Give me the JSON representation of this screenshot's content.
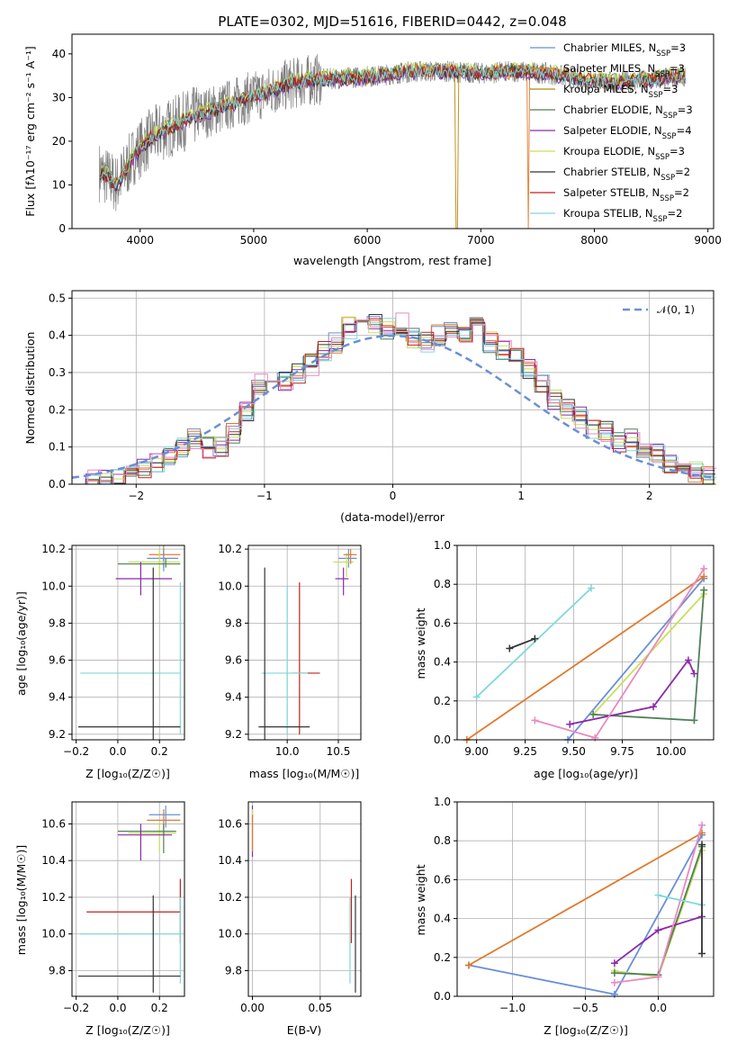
{
  "title": "PLATE=0302, MJD=51616, FIBERID=0442, z=0.048",
  "colors": {
    "c0": "#6a8fd8",
    "c1": "#e07a2c",
    "c2": "#b8860b",
    "c3": "#4f7f5a",
    "c4": "#8a2aa8",
    "c5": "#c8e05a",
    "c6": "#333333",
    "c7": "#c0201c",
    "c8": "#7fd8d8",
    "pink": "#e88ac0",
    "data": "#808080",
    "normal": "#6a8fd8"
  },
  "spectrum": {
    "xlabel": "wavelength [Angstrom, rest frame]",
    "ylabel": "Flux [fλ10⁻¹⁷ erg cm⁻² s⁻¹ A⁻¹]",
    "xticks": [
      "4000",
      "5000",
      "6000",
      "7000",
      "8000",
      "9000"
    ],
    "yticks": [
      "0",
      "10",
      "20",
      "30",
      "40"
    ],
    "xlim": [
      3400,
      9050
    ],
    "ylim": [
      0,
      44.5
    ],
    "legend": [
      {
        "name": "Chabrier MILES",
        "nssp": "3"
      },
      {
        "name": "Salpeter MILES",
        "nssp": "3"
      },
      {
        "name": "Kroupa MILES",
        "nssp": "3"
      },
      {
        "name": "Chabrier ELODIE",
        "nssp": "3"
      },
      {
        "name": "Salpeter ELODIE",
        "nssp": "4"
      },
      {
        "name": "Kroupa ELODIE",
        "nssp": "3"
      },
      {
        "name": "Chabrier STELIB",
        "nssp": "2"
      },
      {
        "name": "Salpeter STELIB",
        "nssp": "2"
      },
      {
        "name": "Kroupa STELIB",
        "nssp": "2"
      }
    ],
    "nssp_label": "N",
    "nssp_sub": "SSP"
  },
  "hist": {
    "xlabel": "(data-model)/error",
    "ylabel": "Normed distribution",
    "xticks": [
      "−2",
      "−1",
      "0",
      "1",
      "2"
    ],
    "yticks": [
      "0.0",
      "0.1",
      "0.2",
      "0.3",
      "0.4",
      "0.5"
    ],
    "xlim": [
      -2.5,
      2.5
    ],
    "ylim": [
      0,
      0.52
    ],
    "legend": "𝒩(0, 1)"
  },
  "panels": {
    "age_z": {
      "xlabel": "Z [log₁₀(Z/Z☉)]",
      "ylabel": "age  [log₁₀(age/yr)]",
      "xticks": [
        "−0.2",
        "0.0",
        "0.2"
      ],
      "yticks": [
        "9.2",
        "9.4",
        "9.6",
        "9.8",
        "10.0",
        "10.2"
      ]
    },
    "age_mass": {
      "xlabel": "mass [log₁₀(M/M☉)]",
      "xticks": [
        "10.0",
        "10.5"
      ],
      "yticks": [
        "9.2",
        "9.4",
        "9.6",
        "9.8",
        "10.0",
        "10.2"
      ]
    },
    "mw_age": {
      "xlabel": "age  [log₁₀(age/yr)]",
      "ylabel": "mass weight",
      "xticks": [
        "9.00",
        "9.25",
        "9.50",
        "9.75",
        "10.00"
      ],
      "yticks": [
        "0.0",
        "0.2",
        "0.4",
        "0.6",
        "0.8",
        "1.0"
      ]
    },
    "mass_z": {
      "xlabel": "Z [log₁₀(Z/Z☉)]",
      "ylabel": "mass [log₁₀(M/M☉)]",
      "xticks": [
        "−0.2",
        "0.0",
        "0.2"
      ],
      "yticks": [
        "9.8",
        "10.0",
        "10.2",
        "10.4",
        "10.6"
      ]
    },
    "mass_ebv": {
      "xlabel": "E(B-V)",
      "xticks": [
        "0.00",
        "0.05"
      ],
      "yticks": [
        "9.8",
        "10.0",
        "10.2",
        "10.4",
        "10.6"
      ]
    },
    "mw_z": {
      "xlabel": "Z [log₁₀(Z/Z☉)]",
      "ylabel": "mass weight",
      "xticks": [
        "−1.0",
        "−0.5",
        "0.0"
      ],
      "yticks": [
        "0.0",
        "0.2",
        "0.4",
        "0.6",
        "0.8",
        "1.0"
      ]
    }
  },
  "chart_data": [
    {
      "type": "line",
      "title": "PLATE=0302, MJD=51616, FIBERID=0442, z=0.048",
      "xlabel": "wavelength [Angstrom, rest frame]",
      "ylabel": "Flux [fλ10⁻¹⁷ erg cm⁻² s⁻¹ A⁻¹]",
      "xlim": [
        3400,
        9050
      ],
      "ylim": [
        0,
        44.5
      ],
      "continuum_x": [
        3650,
        3800,
        3950,
        4100,
        4300,
        4500,
        4700,
        4900,
        5100,
        5300,
        5500,
        5800,
        6100,
        6400,
        6700,
        7000,
        7300,
        7600,
        7900,
        8200,
        8500,
        8800
      ],
      "continuum_y": [
        13,
        10,
        17,
        21,
        23.5,
        26,
        27.5,
        29.5,
        31,
        33,
        34,
        34.5,
        35,
        36,
        36,
        35.5,
        36,
        35.5,
        34,
        33.5,
        34,
        35
      ],
      "legend": "top-right"
    },
    {
      "type": "bar",
      "xlabel": "(data-model)/error",
      "ylabel": "Normed distribution",
      "xlim": [
        -2.5,
        2.5
      ],
      "ylim": [
        0,
        0.52
      ],
      "bin_width": 0.1,
      "bins": [
        -2.5,
        -2.4,
        -2.3,
        -2.2,
        -2.1,
        -2.0,
        -1.9,
        -1.8,
        -1.7,
        -1.6,
        -1.5,
        -1.4,
        -1.3,
        -1.2,
        -1.1,
        -1.0,
        -0.9,
        -0.8,
        -0.7,
        -0.6,
        -0.5,
        -0.4,
        -0.3,
        -0.2,
        -0.1,
        0.0,
        0.1,
        0.2,
        0.3,
        0.4,
        0.5,
        0.6,
        0.7,
        0.8,
        0.9,
        1.0,
        1.1,
        1.2,
        1.3,
        1.4,
        1.5,
        1.6,
        1.7,
        1.8,
        1.9,
        2.0,
        2.1,
        2.2,
        2.3,
        2.4
      ],
      "values": [
        0.0,
        0.01,
        0.01,
        0.02,
        0.02,
        0.04,
        0.06,
        0.08,
        0.1,
        0.12,
        0.1,
        0.1,
        0.14,
        0.2,
        0.27,
        0.28,
        0.28,
        0.3,
        0.32,
        0.36,
        0.38,
        0.42,
        0.45,
        0.43,
        0.42,
        0.43,
        0.39,
        0.38,
        0.4,
        0.42,
        0.41,
        0.44,
        0.38,
        0.36,
        0.34,
        0.31,
        0.27,
        0.23,
        0.2,
        0.18,
        0.15,
        0.14,
        0.11,
        0.12,
        0.09,
        0.08,
        0.06,
        0.04,
        0.03,
        0.02
      ],
      "normal_curve": "𝒩(0, 1)"
    },
    {
      "type": "scatter",
      "xlabel": "age  [log₁₀(age/yr)]",
      "ylabel": "mass weight",
      "xlim": [
        8.9,
        10.2
      ],
      "ylim": [
        0,
        1
      ],
      "series": [
        {
          "x": [
            9.47,
            10.17
          ],
          "y": [
            0.0,
            0.83
          ]
        },
        {
          "x": [
            8.95,
            10.17
          ],
          "y": [
            0.0,
            0.84
          ]
        },
        {
          "x": [
            9.6,
            10.17
          ],
          "y": [
            0.13,
            0.75
          ]
        },
        {
          "x": [
            9.6,
            10.12,
            10.17
          ],
          "y": [
            0.13,
            0.1,
            0.77
          ]
        },
        {
          "x": [
            9.48,
            9.91,
            10.09,
            10.12
          ],
          "y": [
            0.08,
            0.17,
            0.41,
            0.34
          ]
        },
        {
          "x": [
            9.3,
            9.61,
            10.17
          ],
          "y": [
            0.1,
            0.01,
            0.88
          ]
        },
        {
          "x": [
            9.0,
            9.59
          ],
          "y": [
            0.22,
            0.78
          ]
        },
        {
          "x": [
            9.17,
            9.3
          ],
          "y": [
            0.47,
            0.52
          ]
        }
      ]
    },
    {
      "type": "scatter",
      "xlabel": "Z [log₁₀(Z/Z☉)]",
      "ylabel": "mass weight",
      "xlim": [
        -1.38,
        0.38
      ],
      "ylim": [
        0,
        1
      ],
      "series": [
        {
          "x": [
            -1.3,
            -0.3,
            0.3
          ],
          "y": [
            0.16,
            0.01,
            0.83
          ]
        },
        {
          "x": [
            -1.3,
            0.3
          ],
          "y": [
            0.16,
            0.84
          ]
        },
        {
          "x": [
            -0.3,
            0.0,
            0.3
          ],
          "y": [
            0.13,
            0.1,
            0.75
          ]
        },
        {
          "x": [
            -0.3,
            0.0,
            0.3
          ],
          "y": [
            0.12,
            0.11,
            0.77
          ]
        },
        {
          "x": [
            -0.3,
            0.0,
            0.3
          ],
          "y": [
            0.17,
            0.34,
            0.41
          ]
        },
        {
          "x": [
            -0.3,
            0.0,
            0.3
          ],
          "y": [
            0.07,
            0.1,
            0.88
          ]
        },
        {
          "x": [
            0.0,
            0.3
          ],
          "y": [
            0.52,
            0.47
          ]
        },
        {
          "x": [
            0.3,
            0.3
          ],
          "y": [
            0.22,
            0.78
          ]
        }
      ]
    }
  ]
}
